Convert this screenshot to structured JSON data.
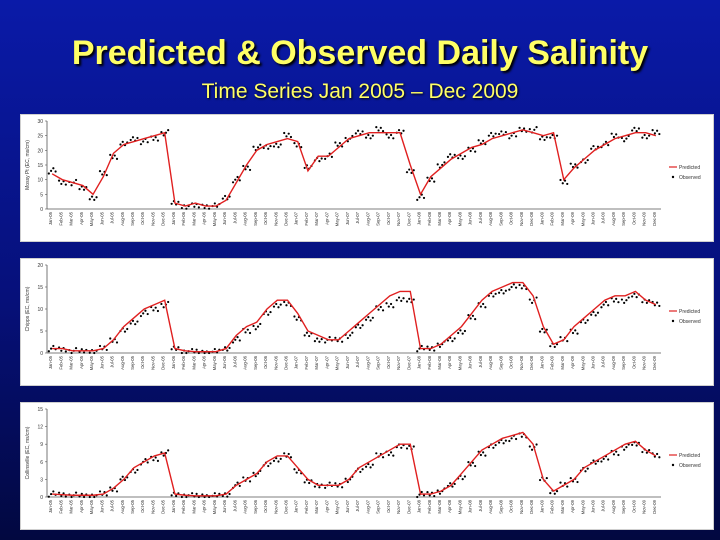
{
  "slide": {
    "title": "Predicted & Observed Daily Salinity",
    "subtitle": "Time Series Jan 2005 – Dec 2009"
  },
  "colors": {
    "predicted": "#e02020",
    "observed": "#000000",
    "background_top": "#0a1aa8",
    "title": "#ffff66"
  },
  "chart_data": [
    {
      "type": "line",
      "station": "top",
      "ylabel": "Mossy Pt (EC, ms/cm)",
      "ylim": [
        0,
        30
      ],
      "yticks": [
        0,
        5,
        10,
        15,
        20,
        25,
        30
      ],
      "xlabels": [
        "Jan-05",
        "Feb-05",
        "Mar-05",
        "Apr-05",
        "May-05",
        "Jun-05",
        "Jul-05",
        "Aug-05",
        "Sep-05",
        "Oct-05",
        "Nov-05",
        "Dec-05",
        "Jan-06",
        "Feb-06",
        "Mar-06",
        "Apr-06",
        "May-06",
        "Jun-06",
        "Jul-06",
        "Aug-06",
        "Sep-06",
        "Oct-06",
        "Nov-06",
        "Dec-06",
        "Jan-07",
        "Feb-07",
        "Mar-07",
        "Apr-07",
        "May-07",
        "Jun-07",
        "Jul-07",
        "Aug-07",
        "Sep-07",
        "Oct-07",
        "Nov-07",
        "Dec-07",
        "Jan-08",
        "Feb-08",
        "Mar-08",
        "Apr-08",
        "May-08",
        "Jun-08",
        "Jul-08",
        "Aug-08",
        "Sep-08",
        "Oct-08",
        "Nov-08",
        "Dec-08",
        "Jan-09",
        "Feb-09",
        "Mar-09",
        "Apr-09",
        "May-09",
        "Jun-09",
        "Jul-09",
        "Aug-09",
        "Sep-09",
        "Oct-09",
        "Nov-09",
        "Dec-09"
      ],
      "legend": [
        "Predicted",
        "Observed"
      ],
      "series": [
        {
          "name": "Predicted",
          "values": [
            12,
            10,
            9,
            8,
            5,
            11,
            19,
            22,
            23,
            24,
            25,
            26,
            2,
            1,
            2,
            1,
            1,
            3,
            9,
            15,
            20,
            22,
            23,
            24,
            23,
            13,
            18,
            18,
            21,
            24,
            25,
            26,
            26,
            26,
            26,
            15,
            5,
            11,
            14,
            17,
            19,
            21,
            22,
            24,
            25,
            26,
            27,
            26,
            25,
            26,
            10,
            14,
            17,
            20,
            22,
            24,
            25,
            26,
            26,
            25
          ]
        },
        {
          "name": "Observed",
          "values": [
            13,
            9,
            9,
            7,
            4,
            12,
            18,
            22,
            24,
            23,
            24,
            26,
            2,
            1,
            1,
            1,
            1,
            4,
            10,
            14,
            21,
            21,
            22,
            25,
            22,
            14,
            17,
            18,
            22,
            24,
            26,
            25,
            27,
            25,
            26,
            13,
            4,
            10,
            15,
            18,
            18,
            20,
            23,
            25,
            26,
            25,
            27,
            27,
            24,
            25,
            9,
            15,
            16,
            21,
            22,
            25,
            24,
            27,
            25,
            26
          ]
        }
      ]
    },
    {
      "type": "line",
      "station": "middle",
      "ylabel": "Chipps (EC, ms/cm)",
      "ylim": [
        0,
        20
      ],
      "yticks": [
        0,
        5,
        10,
        15,
        20
      ],
      "xlabels": [
        "Jan-05",
        "Feb-05",
        "Mar-05",
        "Apr-05",
        "May-05",
        "Jun-05",
        "Jul-05",
        "Aug-05",
        "Sep-05",
        "Oct-05",
        "Nov-05",
        "Dec-05",
        "Jan-06",
        "Feb-06",
        "Mar-06",
        "Apr-06",
        "May-06",
        "Jun-06",
        "Jul-06",
        "Aug-06",
        "Sep-06",
        "Oct-06",
        "Nov-06",
        "Dec-06",
        "Jan-07",
        "Feb-07",
        "Mar-07",
        "Apr-07",
        "May-07",
        "Jun-07",
        "Jul-07",
        "Aug-07",
        "Sep-07",
        "Oct-07",
        "Nov-07",
        "Dec-07",
        "Jan-08",
        "Feb-08",
        "Mar-08",
        "Apr-08",
        "May-08",
        "Jun-08",
        "Jul-08",
        "Aug-08",
        "Sep-08",
        "Oct-08",
        "Nov-08",
        "Dec-08",
        "Jan-09",
        "Feb-09",
        "Mar-09",
        "Apr-09",
        "May-09",
        "Jun-09",
        "Jul-09",
        "Aug-09",
        "Sep-09",
        "Oct-09",
        "Nov-09",
        "Dec-09"
      ],
      "legend": [
        "Predicted",
        "Observed"
      ],
      "series": [
        {
          "name": "Predicted",
          "values": [
            1,
            1,
            0.5,
            0.5,
            0.5,
            1,
            3,
            6,
            8,
            10,
            11,
            12,
            1,
            0.5,
            0.3,
            0.3,
            0.3,
            1,
            4,
            6,
            7,
            10,
            12,
            12,
            9,
            5,
            4,
            3,
            3,
            5,
            7,
            9,
            11,
            13,
            14,
            14,
            1,
            1,
            2,
            4,
            6,
            9,
            12,
            14,
            15,
            16,
            16,
            13,
            6,
            2,
            3,
            6,
            8,
            10,
            12,
            13,
            13,
            14,
            12,
            11
          ]
        },
        {
          "name": "Observed",
          "values": [
            1,
            0.8,
            0.5,
            0.4,
            0.5,
            1,
            3,
            5,
            7,
            9,
            10,
            11,
            1,
            0.4,
            0.3,
            0.2,
            0.3,
            1,
            3,
            5,
            6,
            9,
            11,
            11,
            8,
            4,
            3,
            3,
            3,
            4,
            6,
            8,
            10,
            11,
            12,
            12,
            1,
            1,
            2,
            3,
            5,
            8,
            11,
            13,
            14,
            15,
            15,
            12,
            5,
            2,
            3,
            5,
            7,
            9,
            11,
            12,
            12,
            13,
            12,
            11
          ]
        }
      ]
    },
    {
      "type": "line",
      "station": "bottom",
      "ylabel": "Collinsville (EC, ms/cm)",
      "ylim": [
        0,
        15
      ],
      "yticks": [
        0,
        3,
        6,
        9,
        12,
        15
      ],
      "xlabels": [
        "Jan-05",
        "Feb-05",
        "Mar-05",
        "Apr-05",
        "May-05",
        "Jun-05",
        "Jul-05",
        "Aug-05",
        "Sep-05",
        "Oct-05",
        "Nov-05",
        "Dec-05",
        "Jan-06",
        "Feb-06",
        "Mar-06",
        "Apr-06",
        "May-06",
        "Jun-06",
        "Jul-06",
        "Aug-06",
        "Sep-06",
        "Oct-06",
        "Nov-06",
        "Dec-06",
        "Jan-07",
        "Feb-07",
        "Mar-07",
        "Apr-07",
        "May-07",
        "Jun-07",
        "Jul-07",
        "Aug-07",
        "Sep-07",
        "Oct-07",
        "Nov-07",
        "Dec-07",
        "Jan-08",
        "Feb-08",
        "Mar-08",
        "Apr-08",
        "May-08",
        "Jun-08",
        "Jul-08",
        "Aug-08",
        "Sep-08",
        "Oct-08",
        "Nov-08",
        "Dec-08",
        "Jan-09",
        "Feb-09",
        "Mar-09",
        "Apr-09",
        "May-09",
        "Jun-09",
        "Jul-09",
        "Aug-09",
        "Sep-09",
        "Oct-09",
        "Nov-09",
        "Dec-09"
      ],
      "legend": [
        "Predicted",
        "Observed"
      ],
      "series": [
        {
          "name": "Predicted",
          "values": [
            0.5,
            0.4,
            0.3,
            0.3,
            0.3,
            0.5,
            1.5,
            3,
            5,
            6,
            7,
            7.5,
            0.5,
            0.3,
            0.2,
            0.2,
            0.2,
            0.5,
            2,
            3,
            4,
            6,
            7,
            7,
            5,
            3,
            2,
            2,
            2,
            3,
            5,
            6,
            7,
            8,
            9,
            9,
            0.5,
            0.5,
            1,
            2,
            4,
            6,
            8,
            9,
            10,
            10.5,
            11,
            9,
            3,
            1,
            2,
            3,
            5,
            6,
            7,
            8,
            9,
            9.5,
            8,
            7
          ]
        },
        {
          "name": "Observed",
          "values": [
            0.5,
            0.4,
            0.3,
            0.2,
            0.3,
            0.5,
            1.4,
            3,
            4.5,
            6,
            6.5,
            7.5,
            0.4,
            0.3,
            0.2,
            0.2,
            0.2,
            0.4,
            2,
            3,
            4,
            5.5,
            6.5,
            7,
            4.5,
            2.5,
            2,
            2,
            2,
            3,
            4.5,
            5.5,
            7,
            7.5,
            8.5,
            8.5,
            0.4,
            0.5,
            1,
            2,
            3.5,
            5.5,
            7.5,
            8.5,
            9.5,
            10,
            10.5,
            8.5,
            3,
            1,
            2,
            3,
            4.5,
            6,
            6.5,
            7.5,
            8.5,
            9,
            8,
            7
          ]
        }
      ]
    }
  ]
}
